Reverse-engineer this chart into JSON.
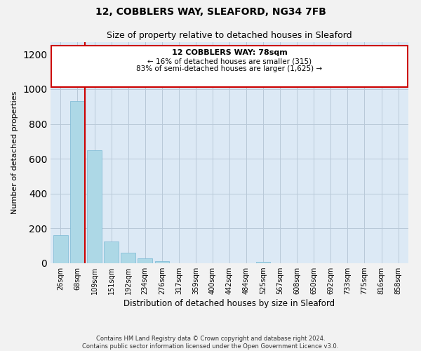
{
  "title": "12, COBBLERS WAY, SLEAFORD, NG34 7FB",
  "subtitle": "Size of property relative to detached houses in Sleaford",
  "xlabel": "Distribution of detached houses by size in Sleaford",
  "ylabel": "Number of detached properties",
  "categories": [
    "26sqm",
    "68sqm",
    "109sqm",
    "151sqm",
    "192sqm",
    "234sqm",
    "276sqm",
    "317sqm",
    "359sqm",
    "400sqm",
    "442sqm",
    "484sqm",
    "525sqm",
    "567sqm",
    "608sqm",
    "650sqm",
    "692sqm",
    "733sqm",
    "775sqm",
    "816sqm",
    "858sqm"
  ],
  "values": [
    160,
    930,
    650,
    125,
    60,
    28,
    13,
    0,
    0,
    0,
    0,
    0,
    10,
    0,
    0,
    0,
    0,
    0,
    0,
    0,
    0
  ],
  "bar_color": "#add8e6",
  "bar_edge_color": "#7ab8d4",
  "annotation_title": "12 COBBLERS WAY: 78sqm",
  "annotation_line1": "← 16% of detached houses are smaller (315)",
  "annotation_line2": "83% of semi-detached houses are larger (1,625) →",
  "marker_color": "#cc0000",
  "ylim": [
    0,
    1270
  ],
  "yticks": [
    0,
    200,
    400,
    600,
    800,
    1000,
    1200
  ],
  "footnote1": "Contains HM Land Registry data © Crown copyright and database right 2024.",
  "footnote2": "Contains public sector information licensed under the Open Government Licence v3.0.",
  "bg_color": "#f2f2f2",
  "plot_bg_color": "#dce9f5"
}
